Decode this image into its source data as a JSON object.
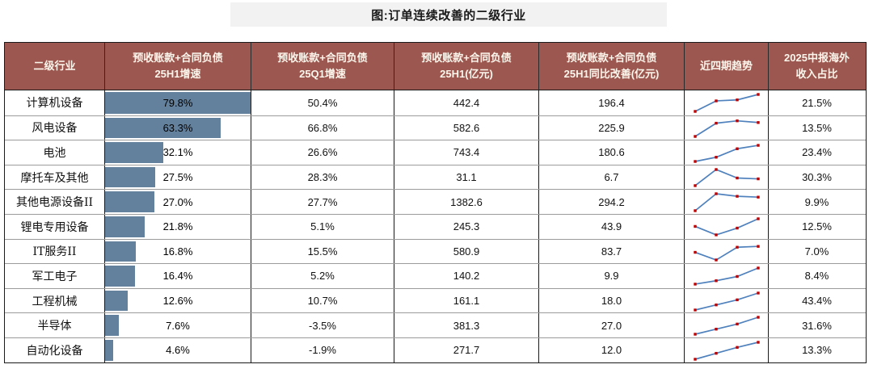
{
  "title": "图:订单连续改善的二级行业",
  "colors": {
    "header_bg": "#9C5850",
    "header_text": "#FDF6EC",
    "bar_fill": "#63809D",
    "trend_line": "#4F81BD",
    "trend_marker": "#C00000",
    "title_bg": "#F2F2F2"
  },
  "table": {
    "headers": [
      {
        "line1": "二级行业",
        "line2": ""
      },
      {
        "line1": "预收账款+合同负债",
        "line2": "25H1增速"
      },
      {
        "line1": "预收账款+合同负债",
        "line2": "25Q1增速"
      },
      {
        "line1": "预收账款+合同负债",
        "line2": "25H1(亿元)"
      },
      {
        "line1": "预收账款+合同负债",
        "line2": "25H1同比改善(亿元)"
      },
      {
        "line1": "近四期趋势",
        "line2": ""
      },
      {
        "line1": "2025中报海外",
        "line2": "收入占比"
      }
    ],
    "bar_max": 79.8,
    "rows": [
      {
        "industry": "计算机设备",
        "h1_growth": "79.8%",
        "h1_growth_value": 79.8,
        "q1_growth": "50.4%",
        "h1_amount": "442.4",
        "yoy_improvement": "196.4",
        "trend": [
          0,
          0.62,
          0.68,
          1.0
        ],
        "overseas_share": "21.5%"
      },
      {
        "industry": "风电设备",
        "h1_growth": "63.3%",
        "h1_growth_value": 63.3,
        "q1_growth": "66.8%",
        "h1_amount": "582.6",
        "yoy_improvement": "225.9",
        "trend": [
          0,
          0.78,
          0.92,
          0.82
        ],
        "overseas_share": "13.5%"
      },
      {
        "industry": "电池",
        "h1_growth": "32.1%",
        "h1_growth_value": 32.1,
        "q1_growth": "26.6%",
        "h1_amount": "743.4",
        "yoy_improvement": "180.6",
        "trend": [
          0,
          0.25,
          0.75,
          0.95
        ],
        "overseas_share": "23.4%"
      },
      {
        "industry": "摩托车及其他",
        "h1_growth": "27.5%",
        "h1_growth_value": 27.5,
        "q1_growth": "28.3%",
        "h1_amount": "31.1",
        "yoy_improvement": "6.7",
        "trend": [
          0.05,
          1.0,
          0.5,
          0.45
        ],
        "overseas_share": "30.3%"
      },
      {
        "industry": "其他电源设备II",
        "h1_growth": "27.0%",
        "h1_growth_value": 27.0,
        "q1_growth": "27.7%",
        "h1_amount": "1382.6",
        "yoy_improvement": "294.2",
        "trend": [
          0,
          1.0,
          0.85,
          0.8
        ],
        "overseas_share": "9.9%"
      },
      {
        "industry": "锂电专用设备",
        "h1_growth": "21.8%",
        "h1_growth_value": 21.8,
        "q1_growth": "5.1%",
        "h1_amount": "245.3",
        "yoy_improvement": "43.9",
        "trend": [
          0.55,
          0.05,
          0.45,
          1.0
        ],
        "overseas_share": "12.5%"
      },
      {
        "industry": "IT服务II",
        "h1_growth": "16.8%",
        "h1_growth_value": 16.8,
        "q1_growth": "15.5%",
        "h1_amount": "580.9",
        "yoy_improvement": "83.7",
        "trend": [
          0.45,
          0,
          0.75,
          0.8
        ],
        "overseas_share": "7.0%"
      },
      {
        "industry": "军工电子",
        "h1_growth": "16.4%",
        "h1_growth_value": 16.4,
        "q1_growth": "5.2%",
        "h1_amount": "140.2",
        "yoy_improvement": "9.9",
        "trend": [
          0.05,
          0.25,
          0.5,
          1.0
        ],
        "overseas_share": "8.4%"
      },
      {
        "industry": "工程机械",
        "h1_growth": "12.6%",
        "h1_growth_value": 12.6,
        "q1_growth": "10.7%",
        "h1_amount": "161.1",
        "yoy_improvement": "18.0",
        "trend": [
          0,
          0.3,
          0.6,
          1.0
        ],
        "overseas_share": "43.4%"
      },
      {
        "industry": "半导体",
        "h1_growth": "7.6%",
        "h1_growth_value": 7.6,
        "q1_growth": "-3.5%",
        "h1_amount": "381.3",
        "yoy_improvement": "27.0",
        "trend": [
          0,
          0.3,
          0.6,
          1.0
        ],
        "overseas_share": "31.6%"
      },
      {
        "industry": "自动化设备",
        "h1_growth": "4.6%",
        "h1_growth_value": 4.6,
        "q1_growth": "-1.9%",
        "h1_amount": "271.7",
        "yoy_improvement": "12.0",
        "trend": [
          0,
          0.35,
          0.7,
          1.0
        ],
        "overseas_share": "13.3%"
      }
    ]
  },
  "chart_data": {
    "type": "table",
    "title": "图:订单连续改善的二级行业",
    "columns": [
      "二级行业",
      "预收账款+合同负债25H1增速",
      "预收账款+合同负债25Q1增速",
      "预收账款+合同负债25H1(亿元)",
      "预收账款+合同负债25H1同比改善(亿元)",
      "近四期趋势",
      "2025中报海外收入占比"
    ],
    "embedded_bar": {
      "column": "预收账款+合同负债25H1增速",
      "min": 0,
      "max": 79.8
    },
    "rows": [
      [
        "计算机设备",
        79.8,
        50.4,
        442.4,
        196.4,
        [
          0,
          0.62,
          0.68,
          1.0
        ],
        21.5
      ],
      [
        "风电设备",
        63.3,
        66.8,
        582.6,
        225.9,
        [
          0,
          0.78,
          0.92,
          0.82
        ],
        13.5
      ],
      [
        "电池",
        32.1,
        26.6,
        743.4,
        180.6,
        [
          0,
          0.25,
          0.75,
          0.95
        ],
        23.4
      ],
      [
        "摩托车及其他",
        27.5,
        28.3,
        31.1,
        6.7,
        [
          0.05,
          1.0,
          0.5,
          0.45
        ],
        30.3
      ],
      [
        "其他电源设备II",
        27.0,
        27.7,
        1382.6,
        294.2,
        [
          0,
          1.0,
          0.85,
          0.8
        ],
        9.9
      ],
      [
        "锂电专用设备",
        21.8,
        5.1,
        245.3,
        43.9,
        [
          0.55,
          0.05,
          0.45,
          1.0
        ],
        12.5
      ],
      [
        "IT服务II",
        16.8,
        15.5,
        580.9,
        83.7,
        [
          0.45,
          0,
          0.75,
          0.8
        ],
        7.0
      ],
      [
        "军工电子",
        16.4,
        5.2,
        140.2,
        9.9,
        [
          0.05,
          0.25,
          0.5,
          1.0
        ],
        8.4
      ],
      [
        "工程机械",
        12.6,
        10.7,
        161.1,
        18.0,
        [
          0,
          0.3,
          0.6,
          1.0
        ],
        43.4
      ],
      [
        "半导体",
        7.6,
        -3.5,
        381.3,
        27.0,
        [
          0,
          0.3,
          0.6,
          1.0
        ],
        31.6
      ],
      [
        "自动化设备",
        4.6,
        -1.9,
        271.7,
        12.0,
        [
          0,
          0.35,
          0.7,
          1.0
        ],
        13.3
      ]
    ]
  }
}
